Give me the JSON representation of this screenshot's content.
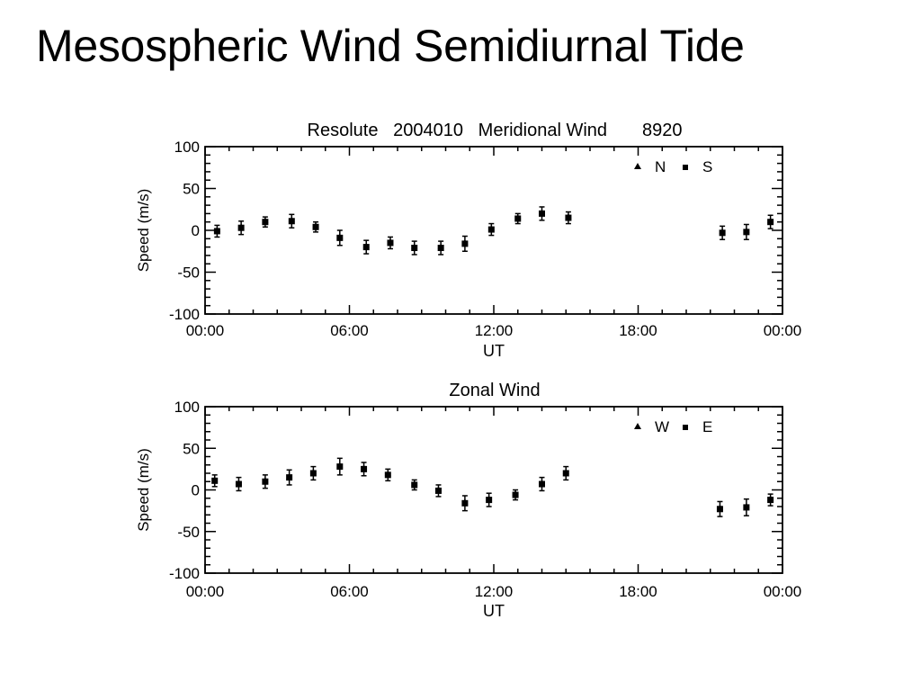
{
  "slide": {
    "title": "Mesospheric Wind Semidiurnal Tide"
  },
  "chart_data": [
    {
      "type": "scatter",
      "title": "Resolute   2004010   Meridional Wind       8920",
      "xlabel": "UT",
      "ylabel": "Speed (m/s)",
      "xlim": [
        0,
        24
      ],
      "ylim": [
        -100,
        100
      ],
      "xticks": [
        "00:00",
        "06:00",
        "12:00",
        "18:00",
        "00:00"
      ],
      "yticks": [
        100,
        50,
        0,
        -50,
        -100
      ],
      "grid": false,
      "legend_position": "top-right",
      "legend": [
        {
          "symbol": "triangle",
          "label": "N"
        },
        {
          "symbol": "square",
          "label": "S"
        }
      ],
      "points": [
        {
          "x": 0.5,
          "y": -1,
          "err": 7
        },
        {
          "x": 1.5,
          "y": 3,
          "err": 8
        },
        {
          "x": 2.5,
          "y": 10,
          "err": 6
        },
        {
          "x": 3.6,
          "y": 11,
          "err": 8
        },
        {
          "x": 4.6,
          "y": 4,
          "err": 6
        },
        {
          "x": 5.6,
          "y": -9,
          "err": 9
        },
        {
          "x": 6.7,
          "y": -20,
          "err": 8
        },
        {
          "x": 7.7,
          "y": -15,
          "err": 7
        },
        {
          "x": 8.7,
          "y": -21,
          "err": 8
        },
        {
          "x": 9.8,
          "y": -21,
          "err": 8
        },
        {
          "x": 10.8,
          "y": -16,
          "err": 9
        },
        {
          "x": 11.9,
          "y": 1,
          "err": 7
        },
        {
          "x": 13.0,
          "y": 14,
          "err": 6
        },
        {
          "x": 14.0,
          "y": 20,
          "err": 8
        },
        {
          "x": 15.1,
          "y": 15,
          "err": 7
        },
        {
          "x": 21.5,
          "y": -3,
          "err": 8
        },
        {
          "x": 22.5,
          "y": -2,
          "err": 9
        },
        {
          "x": 23.5,
          "y": 10,
          "err": 8
        }
      ]
    },
    {
      "type": "scatter",
      "title": "Zonal Wind",
      "xlabel": "UT",
      "ylabel": "Speed (m/s)",
      "xlim": [
        0,
        24
      ],
      "ylim": [
        -100,
        100
      ],
      "xticks": [
        "00:00",
        "06:00",
        "12:00",
        "18:00",
        "00:00"
      ],
      "yticks": [
        100,
        50,
        0,
        -50,
        -100
      ],
      "grid": false,
      "legend_position": "top-right",
      "legend": [
        {
          "symbol": "triangle",
          "label": "W"
        },
        {
          "symbol": "square",
          "label": "E"
        }
      ],
      "points": [
        {
          "x": 0.4,
          "y": 11,
          "err": 7
        },
        {
          "x": 1.4,
          "y": 7,
          "err": 8
        },
        {
          "x": 2.5,
          "y": 10,
          "err": 8
        },
        {
          "x": 3.5,
          "y": 15,
          "err": 9
        },
        {
          "x": 4.5,
          "y": 20,
          "err": 8
        },
        {
          "x": 5.6,
          "y": 28,
          "err": 10
        },
        {
          "x": 6.6,
          "y": 25,
          "err": 8
        },
        {
          "x": 7.6,
          "y": 18,
          "err": 7
        },
        {
          "x": 8.7,
          "y": 6,
          "err": 6
        },
        {
          "x": 9.7,
          "y": -1,
          "err": 7
        },
        {
          "x": 10.8,
          "y": -16,
          "err": 9
        },
        {
          "x": 11.8,
          "y": -12,
          "err": 8
        },
        {
          "x": 12.9,
          "y": -6,
          "err": 6
        },
        {
          "x": 14.0,
          "y": 7,
          "err": 8
        },
        {
          "x": 15.0,
          "y": 20,
          "err": 8
        },
        {
          "x": 21.4,
          "y": -23,
          "err": 9
        },
        {
          "x": 22.5,
          "y": -21,
          "err": 10
        },
        {
          "x": 23.5,
          "y": -12,
          "err": 7
        }
      ]
    }
  ]
}
